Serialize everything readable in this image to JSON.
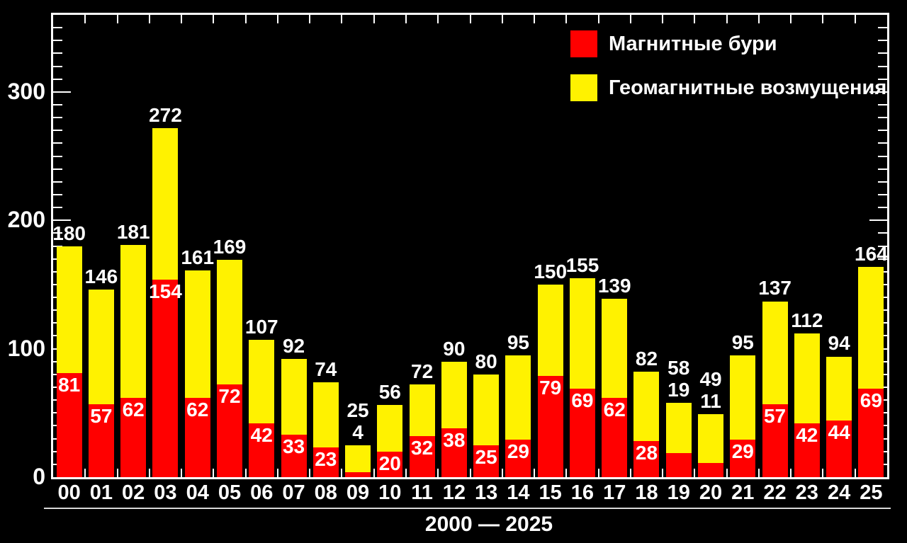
{
  "chart_data": {
    "type": "bar",
    "stacked": true,
    "title": "",
    "xlabel": "2000 — 2025",
    "ylabel": "",
    "categories": [
      "00",
      "01",
      "02",
      "03",
      "04",
      "05",
      "06",
      "07",
      "08",
      "09",
      "10",
      "11",
      "12",
      "13",
      "14",
      "15",
      "16",
      "17",
      "18",
      "19",
      "20",
      "21",
      "22",
      "23",
      "24",
      "25"
    ],
    "totals": [
      180,
      146,
      181,
      272,
      161,
      169,
      107,
      92,
      74,
      25,
      56,
      72,
      90,
      80,
      95,
      150,
      155,
      139,
      82,
      58,
      49,
      95,
      137,
      112,
      94,
      164
    ],
    "series": [
      {
        "name": "Магнитные бури",
        "color": "#ff0000",
        "values": [
          81,
          57,
          62,
          154,
          62,
          72,
          42,
          33,
          23,
          4,
          20,
          32,
          38,
          25,
          29,
          79,
          69,
          62,
          28,
          19,
          11,
          29,
          57,
          42,
          44,
          69
        ]
      },
      {
        "name": "Геомагнитные возмущения",
        "color": "#fff200",
        "values": [
          99,
          89,
          119,
          118,
          99,
          97,
          65,
          59,
          51,
          21,
          36,
          40,
          52,
          55,
          66,
          71,
          86,
          77,
          54,
          39,
          38,
          66,
          80,
          70,
          50,
          95
        ]
      }
    ],
    "red_label_above_categories": [
      "09",
      "19",
      "20"
    ],
    "ylim": [
      0,
      360
    ],
    "yticks": [
      0,
      100,
      200,
      300
    ],
    "minor_tick_step": 10,
    "legend_position": "top-right",
    "background_color": "#000000",
    "axis_color": "#ffffff",
    "label_color": "#ffffff"
  }
}
